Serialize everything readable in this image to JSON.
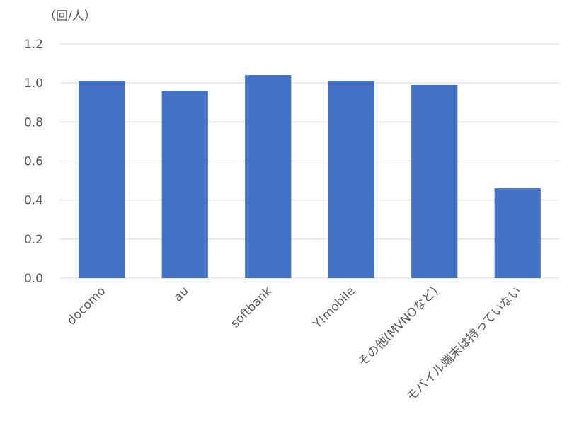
{
  "chart_data": {
    "type": "bar",
    "unit": "（回/人）",
    "categories": [
      "docomo",
      "au",
      "softbank",
      "Y!mobile",
      "その他(MVNOなど)",
      "モバイル端末は持っていない"
    ],
    "values": [
      1.01,
      0.96,
      1.04,
      1.01,
      0.99,
      0.46
    ],
    "ylim": [
      0,
      1.2
    ],
    "yticks": [
      "0.0",
      "0.2",
      "0.4",
      "0.6",
      "0.8",
      "1.0",
      "1.2"
    ],
    "ytick_values": [
      0,
      0.2,
      0.4,
      0.6,
      0.8,
      1.0,
      1.2
    ],
    "grid": true,
    "legend": "none",
    "bar_color": "#4472c4"
  }
}
